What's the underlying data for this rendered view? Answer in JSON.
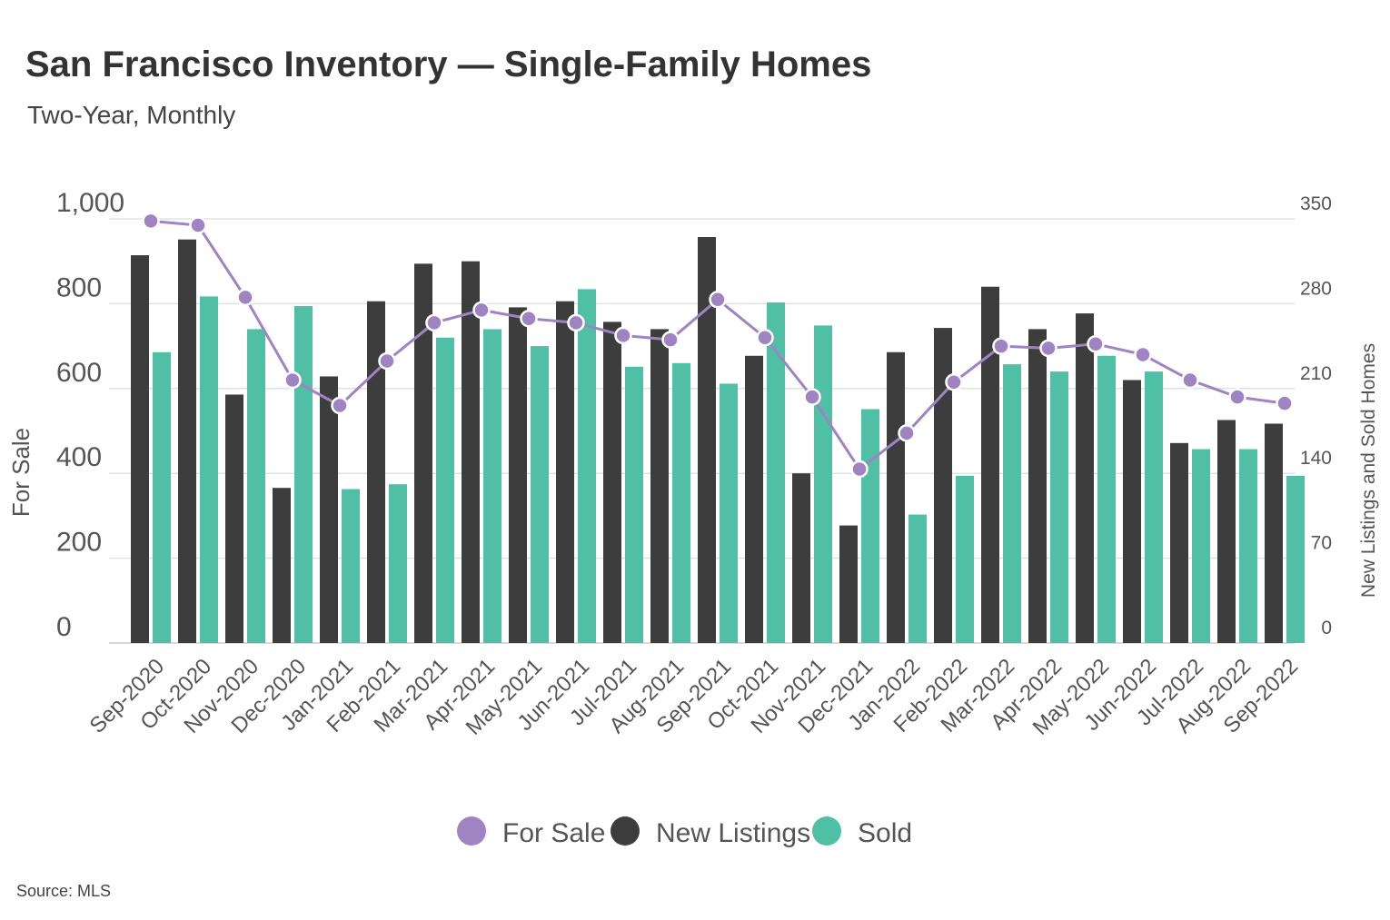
{
  "title": "San Francisco Inventory — Single-Family Homes",
  "subtitle": "Two-Year, Monthly",
  "source": "Source:  MLS",
  "colors": {
    "for_sale": "#9e84c2",
    "for_sale_line": "#9e84c2",
    "new_listings": "#3d3d3d",
    "sold": "#4fbfa5"
  },
  "chart_data": {
    "type": "bar",
    "categories": [
      "Sep-2020",
      "Oct-2020",
      "Nov-2020",
      "Dec-2020",
      "Jan-2021",
      "Feb-2021",
      "Mar-2021",
      "Apr-2021",
      "May-2021",
      "Jun-2021",
      "Jul-2021",
      "Aug-2021",
      "Sep-2021",
      "Oct-2021",
      "Nov-2021",
      "Dec-2021",
      "Jan-2022",
      "Feb-2022",
      "Mar-2022",
      "Apr-2022",
      "May-2022",
      "Jun-2022",
      "Jul-2022",
      "Aug-2022",
      "Sep-2022"
    ],
    "series": [
      {
        "name": "For Sale",
        "type": "line",
        "axis": "left",
        "values": [
          995,
          985,
          815,
          620,
          560,
          665,
          755,
          785,
          765,
          755,
          725,
          715,
          810,
          720,
          580,
          410,
          495,
          615,
          700,
          695,
          705,
          680,
          620,
          580,
          565
        ]
      },
      {
        "name": "New Listings",
        "type": "bar",
        "axis": "right",
        "values": [
          320,
          333,
          205,
          128,
          220,
          282,
          313,
          315,
          277,
          282,
          265,
          259,
          335,
          237,
          140,
          97,
          240,
          260,
          294,
          259,
          272,
          217,
          165,
          184,
          181
        ]
      },
      {
        "name": "Sold",
        "type": "bar",
        "axis": "right",
        "values": [
          240,
          286,
          259,
          278,
          127,
          131,
          252,
          259,
          245,
          292,
          228,
          231,
          214,
          281,
          262,
          193,
          106,
          138,
          230,
          224,
          237,
          224,
          160,
          160,
          138
        ]
      }
    ],
    "y_left": {
      "label": "For Sale",
      "range": [
        0,
        1000
      ],
      "ticks": [
        0,
        200,
        400,
        600,
        800,
        1000
      ],
      "tick_labels": [
        "0",
        "200",
        "400",
        "600",
        "800",
        "1,000"
      ]
    },
    "y_right": {
      "label": "New Listings and Sold Homes",
      "range": [
        0,
        350
      ],
      "ticks": [
        0,
        70,
        140,
        210,
        280,
        350
      ],
      "tick_labels": [
        "0",
        "70",
        "140",
        "210",
        "280",
        "350"
      ]
    },
    "grid": true,
    "legend": {
      "position": "bottom-center",
      "entries": [
        "For Sale",
        "New Listings",
        "Sold"
      ]
    }
  }
}
